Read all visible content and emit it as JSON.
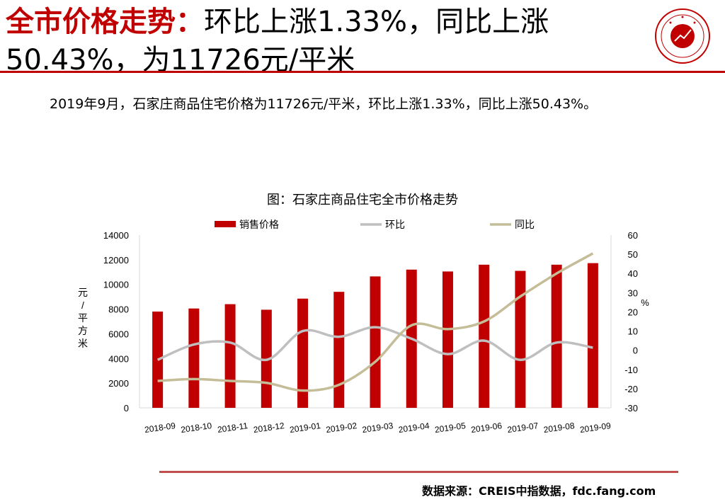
{
  "header": {
    "title_prefix": "全市价格走势：",
    "title_rest": "环比上涨1.33%，同比上涨50.43%，为11726元/平米"
  },
  "summary": "2019年9月，石家庄商品住宅价格为11726元/平米，环比上涨1.33%，同比上涨50.43%。",
  "source": "数据来源：CREIS中指数据，fdc.fang.com",
  "colors": {
    "accent": "#c00000",
    "bar": "#c00000",
    "mom": "#bfbfbf",
    "yoy": "#c4bd97",
    "rule": "#c0504d"
  },
  "chart_data": {
    "type": "bar",
    "title": "图：石家庄商品住宅全市价格走势",
    "categories": [
      "2018-09",
      "2018-10",
      "2018-11",
      "2018-12",
      "2019-01",
      "2019-02",
      "2019-03",
      "2019-04",
      "2019-05",
      "2019-06",
      "2019-07",
      "2019-08",
      "2019-09"
    ],
    "series": [
      {
        "name": "销售价格",
        "type": "bar",
        "axis": "left",
        "values": [
          7800,
          8050,
          8400,
          7950,
          8850,
          9400,
          10650,
          11200,
          11050,
          11600,
          11100,
          11600,
          11726
        ]
      },
      {
        "name": "环比",
        "type": "line",
        "axis": "right",
        "values": [
          -5,
          3,
          4,
          -5,
          10,
          7,
          12,
          6,
          -2,
          5,
          -5,
          4,
          1.33
        ]
      },
      {
        "name": "同比",
        "type": "line",
        "axis": "right",
        "values": [
          -16,
          -15,
          -16,
          -17,
          -21,
          -18,
          -6,
          13,
          11,
          15,
          28,
          40,
          50.43
        ]
      }
    ],
    "ylabel": "元/平方米",
    "y2label": "%",
    "ylim": [
      0,
      14000
    ],
    "y2lim": [
      -30,
      60
    ],
    "yticks": [
      0,
      2000,
      4000,
      6000,
      8000,
      10000,
      12000,
      14000
    ],
    "y2ticks": [
      -30,
      -20,
      -10,
      0,
      10,
      20,
      30,
      40,
      50,
      60
    ],
    "legend": "top",
    "grid": false
  }
}
